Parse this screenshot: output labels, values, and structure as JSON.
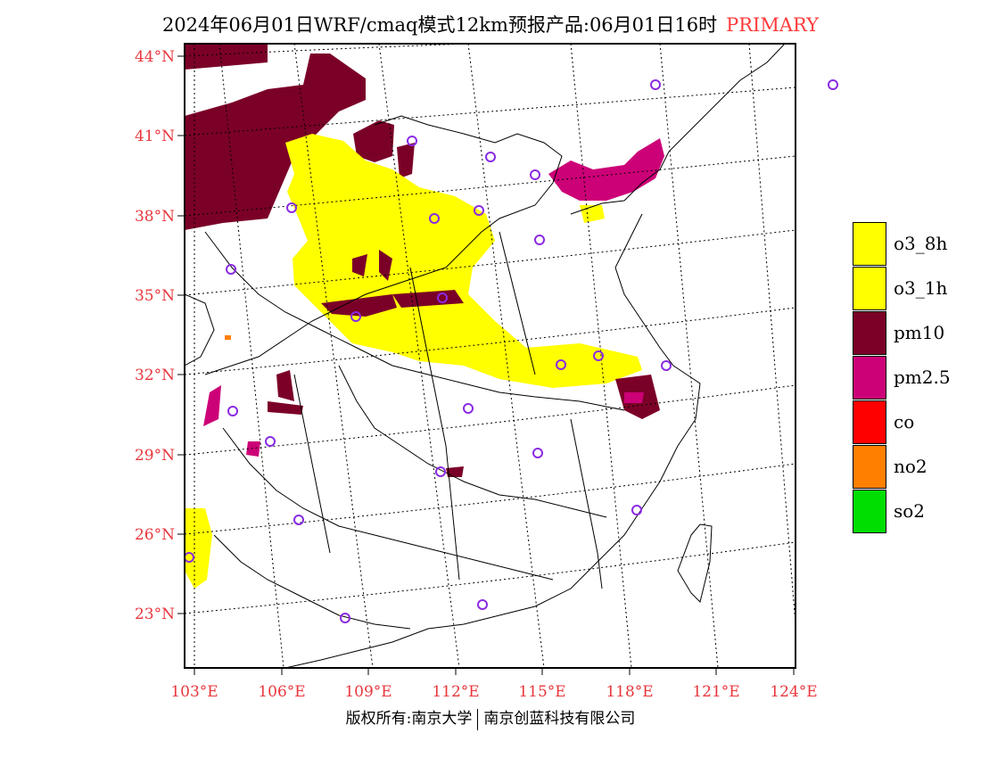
{
  "title": {
    "main": "2024年06月01日WRF/cmaq模式12km预报产品:06月01日16时",
    "tag": "PRIMARY",
    "tag_color": "#ff3b3b"
  },
  "lat_labels": [
    "44°N",
    "41°N",
    "38°N",
    "35°N",
    "32°N",
    "29°N",
    "26°N",
    "23°N"
  ],
  "lon_labels": [
    "103°E",
    "106°E",
    "109°E",
    "112°E",
    "115°E",
    "118°E",
    "121°E",
    "124°E"
  ],
  "legend": [
    {
      "label": "o3_8h",
      "color": "#ffff00"
    },
    {
      "label": "o3_1h",
      "color": "#ffff00"
    },
    {
      "label": "pm10",
      "color": "#7b0028"
    },
    {
      "label": "pm2.5",
      "color": "#cc0077"
    },
    {
      "label": "co",
      "color": "#ff0000"
    },
    {
      "label": "no2",
      "color": "#ff7f00"
    },
    {
      "label": "so2",
      "color": "#00dd00"
    }
  ],
  "footer": {
    "left": "版权所有:南京大学",
    "right": "南京创蓝科技有限公司"
  },
  "map": {
    "projection": "Lambert conformal",
    "lat_range": [
      21,
      44.5
    ],
    "lon_range": [
      102.7,
      124
    ],
    "station_marker": "purple circle",
    "station_color": "#8a2be2"
  }
}
